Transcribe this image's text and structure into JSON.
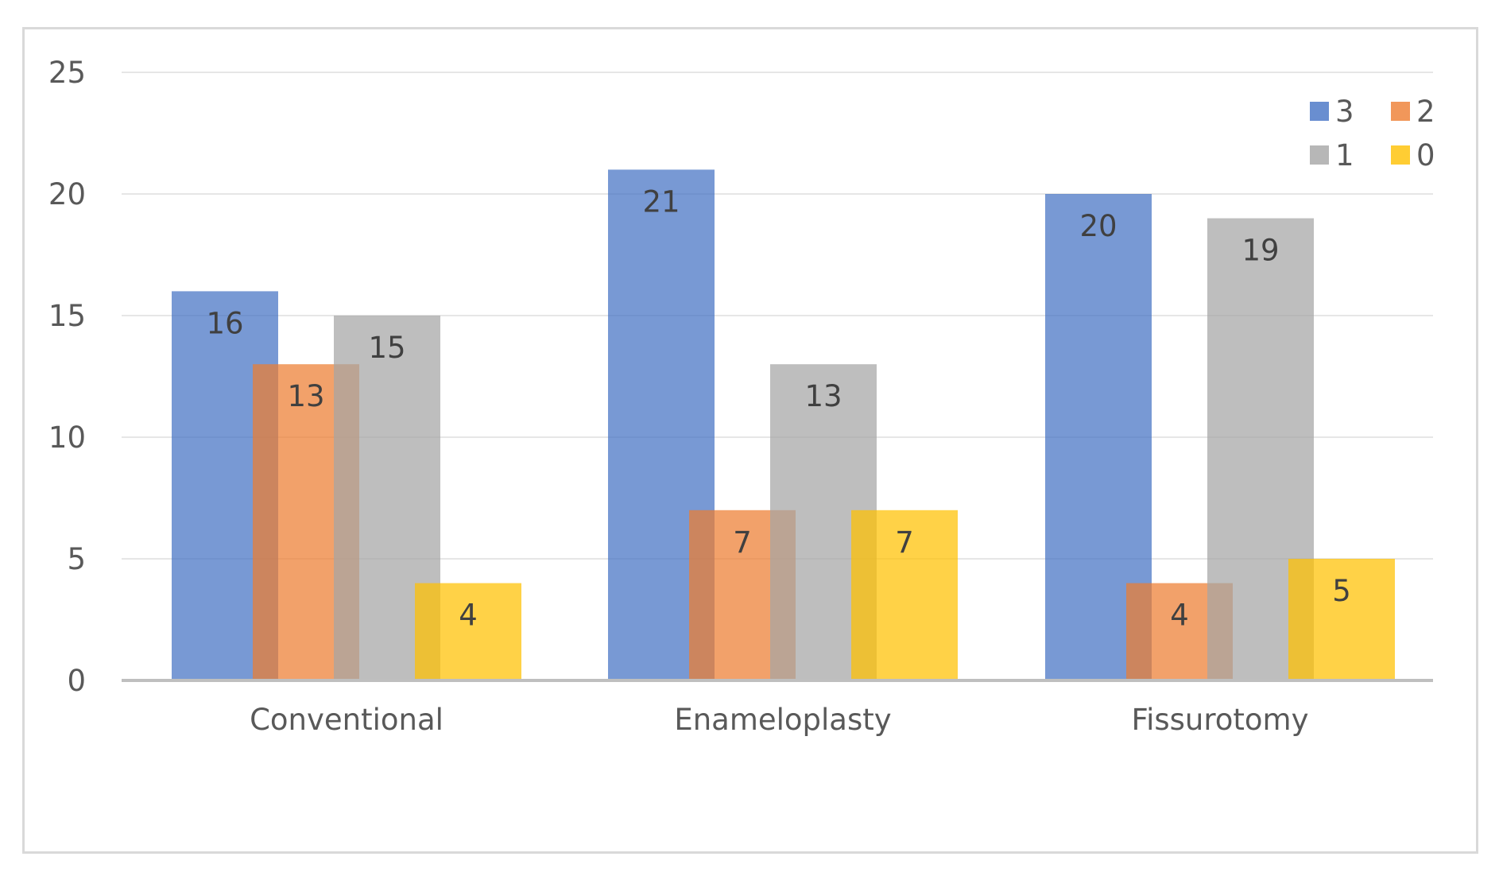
{
  "chart_data": {
    "type": "bar",
    "title": "",
    "xlabel": "",
    "ylabel": "",
    "categories": [
      "Conventional",
      "Enameloplasty",
      "Fissurotomy"
    ],
    "series": [
      {
        "name": "3",
        "values": [
          16,
          21,
          20
        ],
        "color": "#4472C4"
      },
      {
        "name": "2",
        "values": [
          13,
          7,
          4
        ],
        "color": "#ED7D31"
      },
      {
        "name": "1",
        "values": [
          15,
          13,
          19
        ],
        "color": "#A5A5A5"
      },
      {
        "name": "0",
        "values": [
          4,
          7,
          5
        ],
        "color": "#FFC000"
      }
    ],
    "ylim": [
      0,
      25
    ],
    "yticks": [
      0,
      5,
      10,
      15,
      20,
      25
    ],
    "grid": true,
    "legend_position": "top-right",
    "data_labels": true
  }
}
